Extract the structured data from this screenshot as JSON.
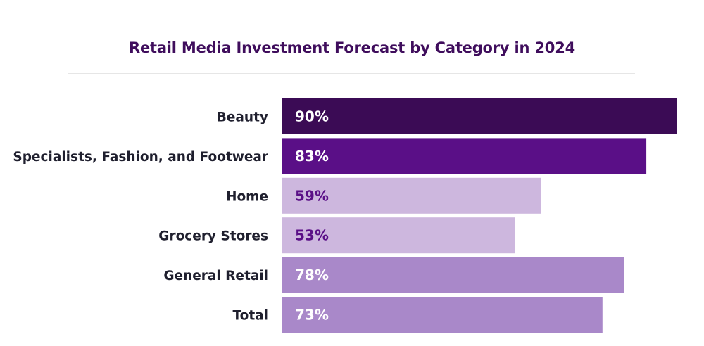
{
  "chart_data": {
    "type": "bar",
    "orientation": "horizontal",
    "title": "Retail Media Investment Forecast by Category in 2024",
    "categories": [
      "Beauty",
      "Specialists, Fashion, and Footwear",
      "Home",
      "Grocery Stores",
      "General Retail",
      "Total"
    ],
    "values": [
      90,
      83,
      59,
      53,
      78,
      73
    ],
    "value_labels": [
      "90%",
      "83%",
      "59%",
      "53%",
      "78%",
      "73%"
    ],
    "unit": "%",
    "xlim": [
      0,
      100
    ],
    "grid": false,
    "legend": "none",
    "bar_colors": [
      "#3b0b55",
      "#5a0f87",
      "#cdb7de",
      "#cdb7de",
      "#a988c9",
      "#a988c9"
    ],
    "label_colors": [
      "#ffffff",
      "#ffffff",
      "#5a0f87",
      "#5a0f87",
      "#ffffff",
      "#ffffff"
    ]
  },
  "colors": {
    "title": "#3f0d5c",
    "category_text": "#1f1f2e"
  }
}
